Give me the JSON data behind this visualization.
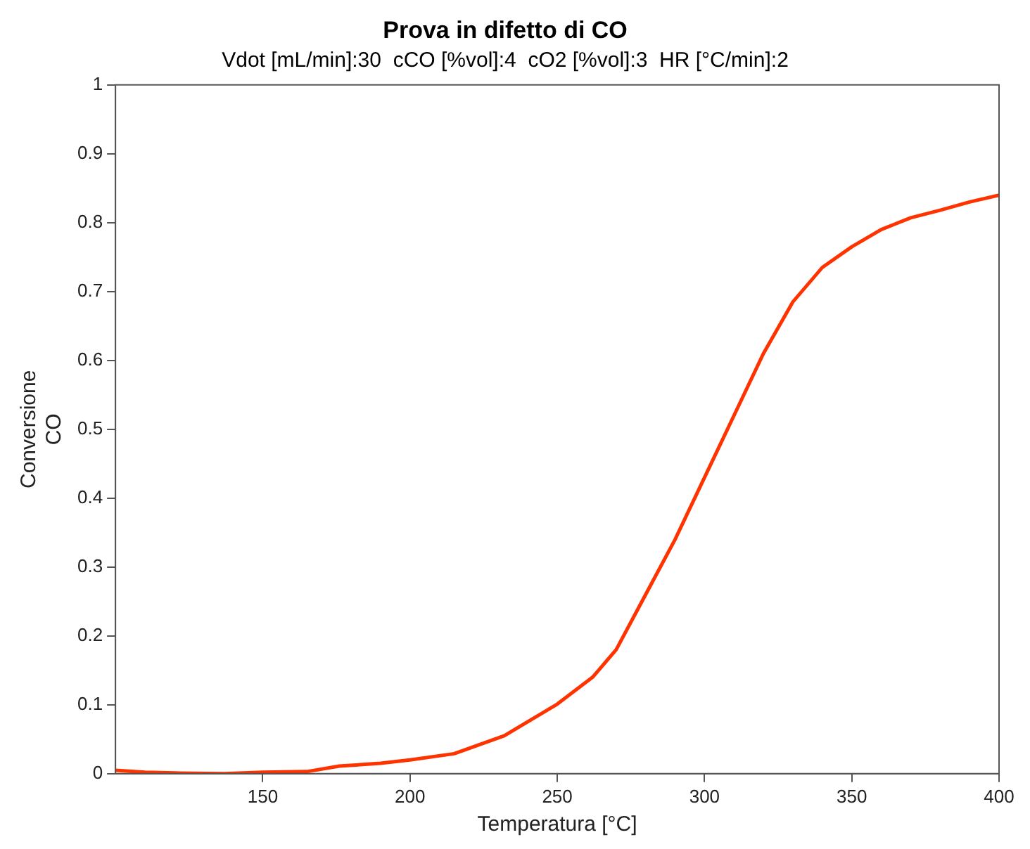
{
  "chart_data": {
    "type": "line",
    "title": "Prova in difetto di CO",
    "subtitle": "Vdot [mL/min]:30  cCO [%vol]:4  cO2 [%vol]:3  HR [°C/min]:2",
    "xlabel": "Temperatura [°C]",
    "ylabel": "Conversione CO",
    "x": [
      100,
      110,
      120,
      137,
      150,
      165,
      176,
      190,
      200,
      215,
      232,
      250,
      262,
      270,
      280,
      290,
      300,
      310,
      320,
      330,
      340,
      350,
      360,
      370,
      380,
      390,
      400
    ],
    "series": [
      {
        "color": "#ff3300",
        "values": [
          0.005,
          0.002,
          0.001,
          0.0,
          0.002,
          0.003,
          0.011,
          0.015,
          0.02,
          0.029,
          0.055,
          0.101,
          0.14,
          0.18,
          0.26,
          0.34,
          0.43,
          0.52,
          0.61,
          0.685,
          0.735,
          0.765,
          0.79,
          0.807,
          0.818,
          0.83,
          0.84
        ]
      }
    ],
    "xlim": [
      100,
      400
    ],
    "xticks": [
      150,
      200,
      250,
      300,
      350,
      400
    ],
    "ylim": [
      0,
      1
    ],
    "yticks": [
      0,
      0.1,
      0.2,
      0.3,
      0.4,
      0.5,
      0.6,
      0.7,
      0.8,
      0.9,
      1
    ],
    "grid": false,
    "legend": false,
    "marker": "none",
    "line_style": "solid"
  }
}
